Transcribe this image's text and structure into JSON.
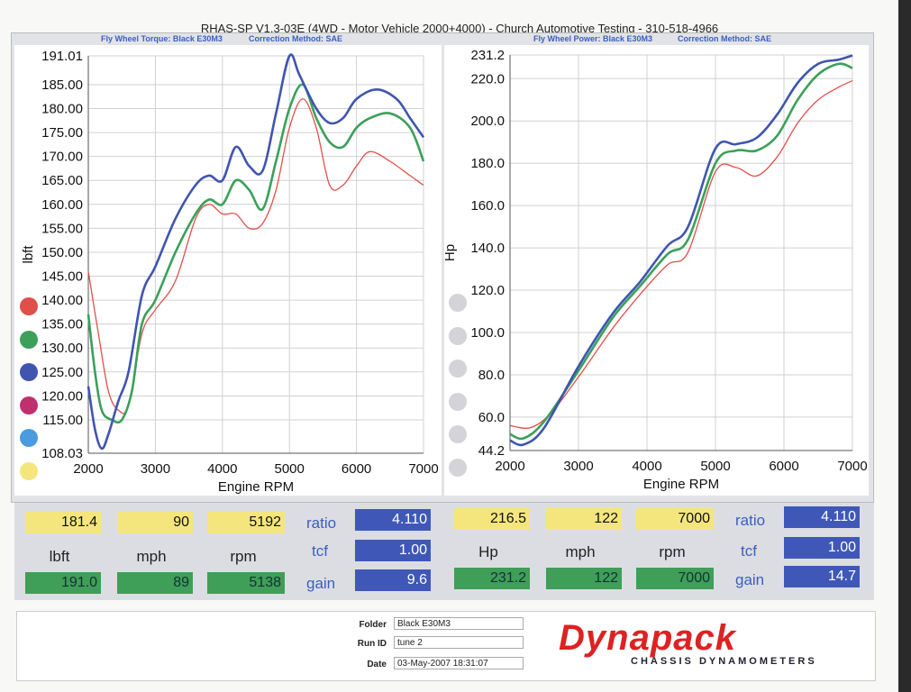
{
  "header": {
    "title": "RHAS-SP V1.3-03E  (4WD - Motor Vehicle 2000+4000) - Church Automotive Testing - 310-518-4966",
    "left_sub_label": "Fly Wheel Torque: Black E30M3",
    "left_correction": "Correction Method: SAE",
    "right_sub_label": "Fly Wheel Power: Black E30M3",
    "right_correction": "Correction Method: SAE"
  },
  "colors": {
    "red": "#e0504a",
    "green": "#3aa05a",
    "blue": "#3f55b0",
    "magenta": "#c0306e",
    "lightblue": "#4a9be0",
    "yellow": "#f4e67c",
    "grey": "#d4d4d8"
  },
  "legend_left": [
    "red",
    "green",
    "blue",
    "magenta",
    "lightblue",
    "yellow"
  ],
  "legend_right": [
    "grey",
    "grey",
    "grey",
    "grey",
    "grey",
    "grey"
  ],
  "chart_data": [
    {
      "type": "line",
      "xlabel": "Engine RPM",
      "ylabel": "lbft",
      "xlim": [
        2000,
        7000
      ],
      "ylim": [
        108.03,
        191.01
      ],
      "x_ticks": [
        "2000",
        "3000",
        "4000",
        "5000",
        "6000",
        "7000"
      ],
      "y_ticks": [
        "191.01",
        "185.00",
        "180.00",
        "175.00",
        "170.00",
        "165.00",
        "160.00",
        "155.00",
        "150.00",
        "145.00",
        "140.00",
        "135.00",
        "130.00",
        "125.00",
        "120.00",
        "115.00",
        "108.03"
      ],
      "series": [
        {
          "color": "red",
          "x": [
            2000,
            2150,
            2300,
            2450,
            2600,
            2800,
            3000,
            3300,
            3600,
            3800,
            4000,
            4200,
            4400,
            4600,
            4800,
            5000,
            5200,
            5400,
            5600,
            5800,
            6000,
            6200,
            6500,
            6800,
            7000
          ],
          "y": [
            146,
            133,
            121,
            117,
            118,
            133,
            138,
            144,
            157,
            160,
            158,
            158,
            155,
            156,
            163,
            176,
            182,
            176,
            164,
            164,
            168,
            171,
            169,
            166,
            164
          ]
        },
        {
          "color": "green",
          "x": [
            2000,
            2100,
            2200,
            2350,
            2500,
            2650,
            2800,
            3000,
            3300,
            3600,
            3800,
            4000,
            4200,
            4400,
            4600,
            4800,
            5000,
            5200,
            5400,
            5600,
            5800,
            6000,
            6200,
            6500,
            6800,
            7000
          ],
          "y": [
            137,
            125,
            117,
            115,
            115,
            121,
            135,
            140,
            150,
            158,
            161,
            160,
            165,
            163,
            159,
            169,
            180,
            185,
            178,
            173,
            172,
            176,
            178,
            179,
            176,
            169
          ]
        },
        {
          "color": "blue",
          "x": [
            2000,
            2100,
            2200,
            2300,
            2450,
            2600,
            2800,
            3000,
            3300,
            3600,
            3800,
            4000,
            4200,
            4400,
            4600,
            4800,
            5000,
            5150,
            5400,
            5600,
            5800,
            6000,
            6300,
            6600,
            6800,
            7000
          ],
          "y": [
            122,
            113,
            109,
            112,
            119,
            125,
            141,
            147,
            157,
            164,
            166,
            165,
            172,
            168,
            167,
            179,
            191,
            187,
            180,
            177,
            178,
            182,
            184,
            182,
            178,
            174
          ]
        }
      ]
    },
    {
      "type": "line",
      "xlabel": "Engine RPM",
      "ylabel": "Hp",
      "xlim": [
        2000,
        7000
      ],
      "ylim": [
        44.2,
        231.2
      ],
      "x_ticks": [
        "2000",
        "3000",
        "4000",
        "5000",
        "6000",
        "7000"
      ],
      "y_ticks": [
        "231.2",
        "220.0",
        "200.0",
        "180.0",
        "160.0",
        "140.0",
        "120.0",
        "100.0",
        "80.0",
        "60.0",
        "44.2"
      ],
      "series": [
        {
          "color": "red",
          "x": [
            2000,
            2300,
            2600,
            3000,
            3500,
            3900,
            4300,
            4600,
            5000,
            5300,
            5600,
            5900,
            6200,
            6500,
            6800,
            7000
          ],
          "y": [
            56,
            55,
            62,
            79,
            102,
            118,
            132,
            138,
            176,
            178,
            174,
            183,
            199,
            210,
            216,
            219
          ]
        },
        {
          "color": "green",
          "x": [
            2000,
            2200,
            2500,
            3000,
            3500,
            3900,
            4300,
            4600,
            5000,
            5300,
            5600,
            5900,
            6200,
            6500,
            6800,
            7000
          ],
          "y": [
            52,
            50,
            58,
            82,
            107,
            122,
            137,
            144,
            180,
            186,
            186,
            193,
            210,
            222,
            227,
            225
          ]
        },
        {
          "color": "blue",
          "x": [
            2000,
            2200,
            2500,
            3000,
            3500,
            3900,
            4300,
            4600,
            5000,
            5300,
            5600,
            5900,
            6200,
            6500,
            6800,
            7000
          ],
          "y": [
            49,
            47,
            55,
            84,
            109,
            124,
            141,
            150,
            187,
            189,
            192,
            203,
            218,
            227,
            229,
            231
          ]
        }
      ]
    }
  ],
  "left_readout": {
    "top": [
      "181.4",
      "90",
      "5192"
    ],
    "labels": [
      "lbft",
      "mph",
      "rpm"
    ],
    "bottom": [
      "191.0",
      "89",
      "5138"
    ],
    "side_labels": [
      "ratio",
      "tcf",
      "gain"
    ],
    "side_values": [
      "4.110",
      "1.00",
      "9.6"
    ]
  },
  "right_readout": {
    "top": [
      "216.5",
      "122",
      "7000"
    ],
    "labels": [
      "Hp",
      "mph",
      "rpm"
    ],
    "bottom": [
      "231.2",
      "122",
      "7000"
    ],
    "side_labels": [
      "ratio",
      "tcf",
      "gain"
    ],
    "side_values": [
      "4.110",
      "1.00",
      "14.7"
    ]
  },
  "run_info": {
    "folder_label": "Folder",
    "folder": "Black E30M3",
    "runid_label": "Run ID",
    "runid": "tune 2",
    "date_label": "Date",
    "date": "03-May-2007  18:31:07"
  },
  "brand": {
    "logo": "Dynapack",
    "tagline": "CHASSIS    DYNAMOMETERS"
  }
}
